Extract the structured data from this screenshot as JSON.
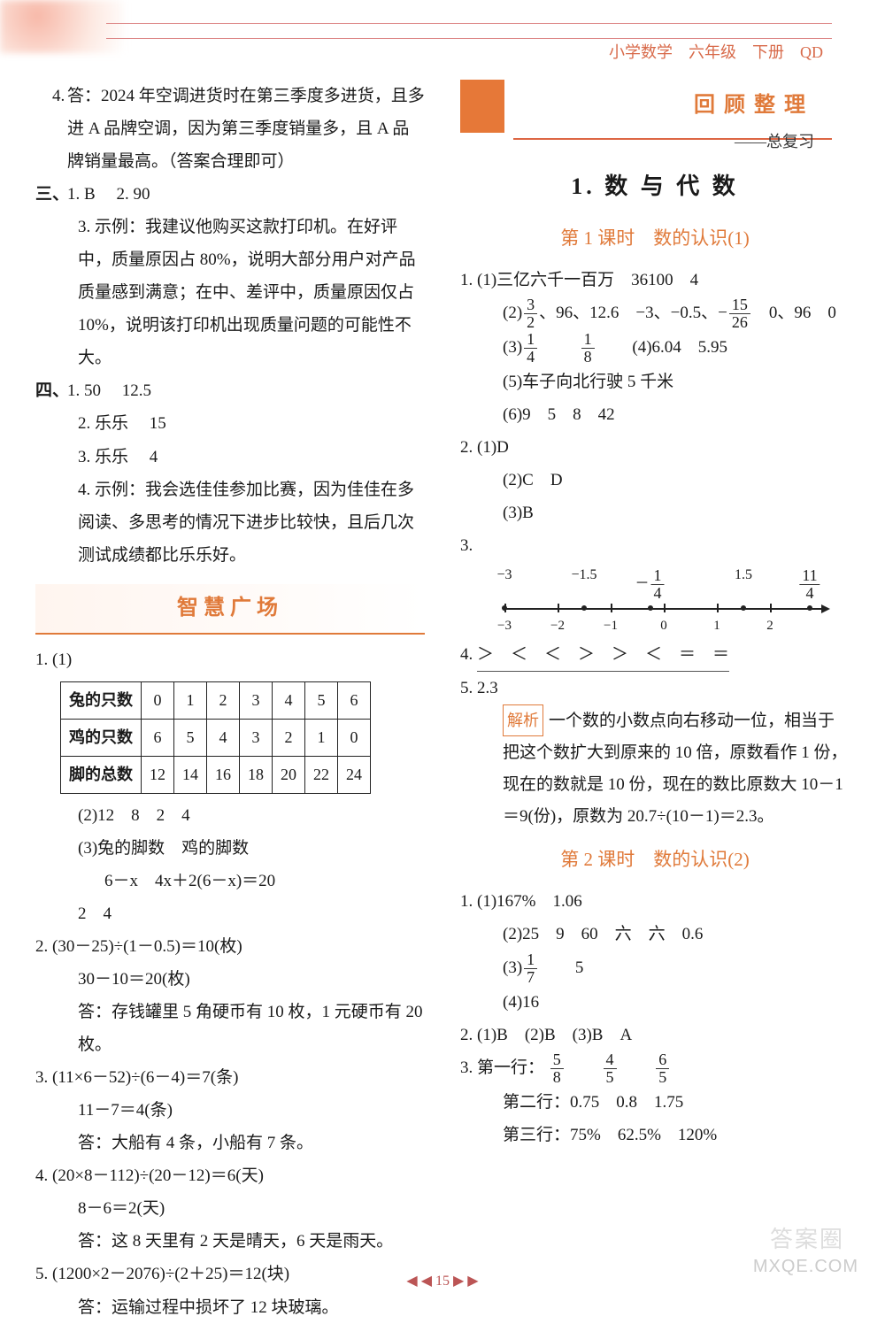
{
  "header": {
    "text": "小学数学　六年级　下册　QD",
    "color": "#d86a4a"
  },
  "left": {
    "q4": "答：2024 年空调进货时在第三季度多进货，且多进 A 品牌空调，因为第三季度销量多，且 A 品牌销量最高。（答案合理即可）",
    "san_1": "B",
    "san_2": "90",
    "san_3": "示例：我建议他购买这款打印机。在好评中，质量原因占 80%，说明大部分用户对产品质量感到满意；在中、差评中，质量原因仅占 10%，说明该打印机出现质量问题的可能性不大。",
    "si_1a": "50",
    "si_1b": "12.5",
    "si_2a": "乐乐",
    "si_2b": "15",
    "si_3a": "乐乐",
    "si_3b": "4",
    "si_4": "示例：我会选佳佳参加比赛，因为佳佳在多阅读、多思考的情况下进步比较快，且后几次测试成绩都比乐乐好。",
    "banner": "智慧广场",
    "table": {
      "headers": [
        "兔的只数",
        "鸡的只数",
        "脚的总数"
      ],
      "cols": [
        "0",
        "1",
        "2",
        "3",
        "4",
        "5",
        "6"
      ],
      "rows": [
        [
          "0",
          "1",
          "2",
          "3",
          "4",
          "5",
          "6"
        ],
        [
          "6",
          "5",
          "4",
          "3",
          "2",
          "1",
          "0"
        ],
        [
          "12",
          "14",
          "16",
          "18",
          "20",
          "22",
          "24"
        ]
      ]
    },
    "zh1_2": "12　8　2　4",
    "zh1_3a": "兔的脚数　鸡的脚数",
    "zh1_3b": "6－x　4x＋2(6－x)＝20",
    "zh1_3c": "2　4",
    "zh2a": "(30－25)÷(1－0.5)＝10(枚)",
    "zh2b": "30－10＝20(枚)",
    "zh2c": "答：存钱罐里 5 角硬币有 10 枚，1 元硬币有 20 枚。",
    "zh3a": "(11×6－52)÷(6－4)＝7(条)",
    "zh3b": "11－7＝4(条)",
    "zh3c": "答：大船有 4 条，小船有 7 条。",
    "zh4a": "(20×8－112)÷(20－12)＝6(天)",
    "zh4b": "8－6＝2(天)",
    "zh4c": "答：这 8 天里有 2 天是晴天，6 天是雨天。",
    "zh5a": "(1200×2－2076)÷(2＋25)＝12(块)",
    "zh5b": "答：运输过程中损坏了 12 块玻璃。"
  },
  "right": {
    "box_t1": "回顾整理",
    "box_t2": "——总复习",
    "h1": "1. 数 与 代 数",
    "lesson1": "第 1 课时　数的认识(1)",
    "l1_1": "三亿六千一百万　36100　4",
    "l1_2_plain": "、96、12.6　−3、−0.5、−",
    "l1_2_tail": "　0、96　0",
    "l1_4": "(4)6.04　5.95",
    "l1_5": "(5)车子向北行驶 5 千米",
    "l1_6": "(6)9　5　8　42",
    "l2_1": "(1)D",
    "l2_2": "(2)C　D",
    "l2_3": "(3)B",
    "numline": {
      "range": [
        -3,
        3
      ],
      "ticks_bottom": [
        {
          "x": -3,
          "l": "−3"
        },
        {
          "x": -2,
          "l": "−2"
        },
        {
          "x": -1,
          "l": "−1"
        },
        {
          "x": 0,
          "l": "0"
        },
        {
          "x": 1,
          "l": "1"
        },
        {
          "x": 2,
          "l": "2"
        }
      ],
      "labels_top": [
        {
          "x": -3,
          "l": "−3"
        },
        {
          "x": -1.5,
          "l": "−1.5"
        },
        {
          "x": -0.25,
          "frac_n": "1",
          "frac_d": "4",
          "neg": true
        },
        {
          "x": 1.5,
          "l": "1.5"
        },
        {
          "x": 2.75,
          "frac_n": "11",
          "frac_d": "4"
        }
      ],
      "dots": [
        -3,
        -1.5,
        -0.25,
        1.5,
        2.75
      ]
    },
    "l4": "＞　＜　＜　＞　＞　＜　＝　＝",
    "l5": "2.3",
    "analysis": "一个数的小数点向右移动一位，相当于把这个数扩大到原来的 10 倍，原数看作 1 份，现在的数就是 10 份，现在的数比原数大 10－1＝9(份)，原数为 20.7÷(10－1)＝2.3。",
    "lesson2": "第 2 课时　数的认识(2)",
    "r2_1_1": "(1)167%　1.06",
    "r2_1_2": "(2)25　9　60　六　六　0.6",
    "r2_1_3b": "5",
    "r2_1_4": "(4)16",
    "r2_2": "(1)B　(2)B　(3)B　A",
    "r2_3_row1_lead": "第一行：",
    "r2_3_row2": "第二行：0.75　0.8　1.75",
    "r2_3_row3": "第三行：75%　62.5%　120%"
  },
  "footer": {
    "page": "15",
    "wm1": "答案圈",
    "wm2": "MXQE.COM"
  }
}
